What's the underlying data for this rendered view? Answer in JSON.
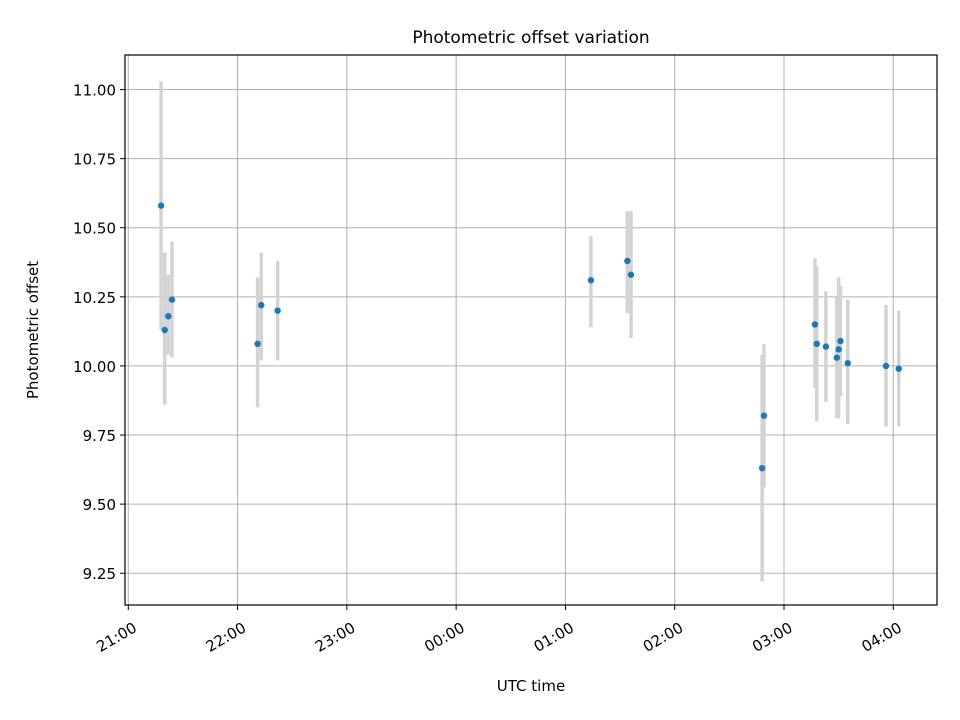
{
  "chart_data": {
    "type": "scatter",
    "title": "Photometric offset variation",
    "xlabel": "UTC time",
    "ylabel": "Photometric offset",
    "xlim_hours": [
      20.97,
      28.4
    ],
    "ylim": [
      9.135,
      11.125
    ],
    "x_ticks_hours": [
      21,
      22,
      23,
      24,
      25,
      26,
      27,
      28
    ],
    "x_tick_labels": [
      "21:00",
      "22:00",
      "23:00",
      "00:00",
      "01:00",
      "02:00",
      "03:00",
      "04:00"
    ],
    "y_ticks": [
      9.25,
      9.5,
      9.75,
      10.0,
      10.25,
      10.5,
      10.75,
      11.0
    ],
    "y_tick_labels": [
      "9.25",
      "9.50",
      "9.75",
      "10.00",
      "10.25",
      "10.50",
      "10.75",
      "11.00"
    ],
    "grid": true,
    "colors": {
      "point": "#1f77b4",
      "error_bar": "#d3d3d3",
      "grid": "#b0b0b0"
    },
    "points": [
      {
        "time": "21:18",
        "y": 10.58,
        "ylow": 10.13,
        "yhigh": 11.03
      },
      {
        "time": "21:20",
        "y": 10.13,
        "ylow": 9.86,
        "yhigh": 10.41
      },
      {
        "time": "21:22",
        "y": 10.18,
        "ylow": 10.04,
        "yhigh": 10.33
      },
      {
        "time": "21:24",
        "y": 10.24,
        "ylow": 10.03,
        "yhigh": 10.45
      },
      {
        "time": "22:11",
        "y": 10.08,
        "ylow": 9.85,
        "yhigh": 10.32
      },
      {
        "time": "22:13",
        "y": 10.22,
        "ylow": 10.02,
        "yhigh": 10.41
      },
      {
        "time": "22:22",
        "y": 10.2,
        "ylow": 10.02,
        "yhigh": 10.38
      },
      {
        "time": "01:14",
        "y": 10.31,
        "ylow": 10.14,
        "yhigh": 10.47
      },
      {
        "time": "01:34",
        "y": 10.38,
        "ylow": 10.19,
        "yhigh": 10.56
      },
      {
        "time": "01:36",
        "y": 10.33,
        "ylow": 10.1,
        "yhigh": 10.56
      },
      {
        "time": "02:48",
        "y": 9.63,
        "ylow": 9.22,
        "yhigh": 10.04
      },
      {
        "time": "02:49",
        "y": 9.82,
        "ylow": 9.56,
        "yhigh": 10.08
      },
      {
        "time": "03:17",
        "y": 10.15,
        "ylow": 9.92,
        "yhigh": 10.39
      },
      {
        "time": "03:18",
        "y": 10.08,
        "ylow": 9.8,
        "yhigh": 10.36
      },
      {
        "time": "03:23",
        "y": 10.07,
        "ylow": 9.87,
        "yhigh": 10.27
      },
      {
        "time": "03:29",
        "y": 10.03,
        "ylow": 9.81,
        "yhigh": 10.25
      },
      {
        "time": "03:30",
        "y": 10.06,
        "ylow": 9.81,
        "yhigh": 10.32
      },
      {
        "time": "03:31",
        "y": 10.09,
        "ylow": 9.89,
        "yhigh": 10.29
      },
      {
        "time": "03:35",
        "y": 10.01,
        "ylow": 9.79,
        "yhigh": 10.24
      },
      {
        "time": "03:56",
        "y": 10.0,
        "ylow": 9.78,
        "yhigh": 10.22
      },
      {
        "time": "04:03",
        "y": 9.99,
        "ylow": 9.78,
        "yhigh": 10.2
      }
    ]
  }
}
